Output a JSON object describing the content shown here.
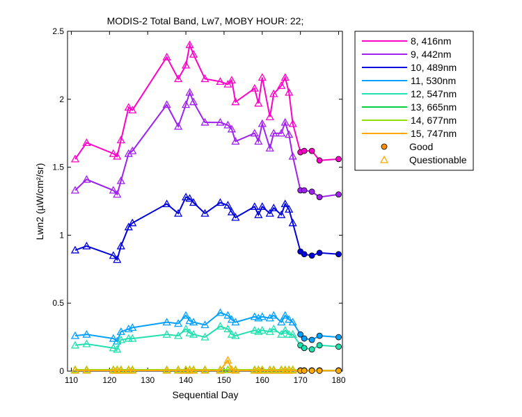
{
  "chart_data": {
    "type": "line",
    "title": "MODIS-2 Total Band, Lw7, MOBY HOUR: 22;",
    "xlabel": "Sequential Day",
    "ylabel": "Lwn2 (µW/cm²/sr)",
    "xlim": [
      109,
      181
    ],
    "ylim": [
      0,
      2.5
    ],
    "xticks": [
      110,
      120,
      130,
      140,
      150,
      160,
      170,
      180
    ],
    "yticks": [
      0,
      0.5,
      1,
      1.5,
      2,
      2.5
    ],
    "xtick_labels": [
      "110",
      "120",
      "130",
      "140",
      "150",
      "160",
      "170",
      "180"
    ],
    "ytick_labels": [
      "0",
      "0.5",
      "1",
      "1.5",
      "2",
      "2.5"
    ],
    "grid": false,
    "legend_position": "outside-right",
    "x": [
      111,
      114,
      121,
      122,
      123,
      125,
      126,
      135,
      138,
      140,
      141,
      142,
      145,
      149,
      151,
      152,
      153,
      158,
      159,
      160,
      162,
      163,
      165,
      166,
      167,
      168,
      170,
      171,
      173,
      175,
      180
    ],
    "good_from_index": 26,
    "series": [
      {
        "name": "8, 416nm",
        "color": "#ff00c8",
        "values": [
          1.56,
          1.68,
          1.6,
          1.58,
          1.7,
          1.94,
          1.92,
          2.31,
          2.15,
          2.25,
          2.4,
          2.33,
          2.15,
          2.13,
          2.11,
          2.14,
          1.98,
          2.08,
          1.97,
          2.16,
          1.87,
          2.04,
          2.1,
          2.16,
          2.05,
          1.82,
          1.61,
          1.62,
          1.62,
          1.55,
          1.56
        ]
      },
      {
        "name": "9, 442nm",
        "color": "#a020f0",
        "values": [
          1.33,
          1.41,
          1.33,
          1.3,
          1.4,
          1.6,
          1.62,
          1.96,
          1.8,
          1.96,
          2.05,
          1.98,
          1.83,
          1.83,
          1.81,
          1.78,
          1.69,
          1.75,
          1.69,
          1.82,
          1.64,
          1.75,
          1.75,
          1.83,
          1.74,
          1.58,
          1.33,
          1.33,
          1.32,
          1.28,
          1.3
        ]
      },
      {
        "name": "10, 489nm",
        "color": "#0000dc",
        "values": [
          0.89,
          0.92,
          0.85,
          0.82,
          0.92,
          1.06,
          1.09,
          1.23,
          1.16,
          1.28,
          1.27,
          1.24,
          1.16,
          1.24,
          1.22,
          1.17,
          1.13,
          1.21,
          1.15,
          1.21,
          1.16,
          1.2,
          1.15,
          1.23,
          1.19,
          1.09,
          0.88,
          0.86,
          0.85,
          0.87,
          0.86
        ]
      },
      {
        "name": "11, 530nm",
        "color": "#00a0ff",
        "values": [
          0.26,
          0.27,
          0.24,
          0.22,
          0.29,
          0.31,
          0.32,
          0.36,
          0.35,
          0.41,
          0.37,
          0.36,
          0.34,
          0.43,
          0.41,
          0.38,
          0.36,
          0.4,
          0.39,
          0.4,
          0.39,
          0.41,
          0.36,
          0.41,
          0.38,
          0.36,
          0.27,
          0.24,
          0.23,
          0.26,
          0.25
        ]
      },
      {
        "name": "12, 547nm",
        "color": "#20e0b0",
        "values": [
          0.19,
          0.2,
          0.17,
          0.16,
          0.23,
          0.24,
          0.24,
          0.27,
          0.26,
          0.31,
          0.28,
          0.27,
          0.25,
          0.33,
          0.31,
          0.27,
          0.26,
          0.3,
          0.29,
          0.3,
          0.29,
          0.31,
          0.27,
          0.3,
          0.27,
          0.27,
          0.19,
          0.17,
          0.16,
          0.19,
          0.18
        ]
      },
      {
        "name": "13, 665nm",
        "color": "#00d040",
        "values": [
          0.01,
          0.01,
          0.01,
          0.01,
          0.01,
          0.01,
          0.01,
          0.01,
          0.01,
          0.01,
          0.01,
          0.01,
          0.01,
          0.01,
          0.01,
          0.01,
          0.01,
          0.01,
          0.01,
          0.01,
          0.01,
          0.01,
          0.01,
          0.01,
          0.01,
          0.01,
          0.005,
          0.005,
          0.005,
          0.005,
          0.005
        ]
      },
      {
        "name": "14, 677nm",
        "color": "#90e000",
        "values": [
          0.01,
          0.01,
          0.01,
          0.01,
          0.01,
          0.01,
          0.01,
          0.01,
          0.01,
          0.01,
          0.01,
          0.01,
          0.01,
          0.01,
          0.01,
          0.01,
          0.01,
          0.01,
          0.01,
          0.01,
          0.01,
          0.01,
          0.01,
          0.01,
          0.01,
          0.01,
          0.005,
          0.005,
          0.005,
          0.005,
          0.005
        ]
      },
      {
        "name": "15, 747nm",
        "color": "#ffaa00",
        "values": [
          0.005,
          0.005,
          0.005,
          0.005,
          0.005,
          0.005,
          0.005,
          0.005,
          0.005,
          0.005,
          0.005,
          0.005,
          0.005,
          0.005,
          0.08,
          0.01,
          0.005,
          0.005,
          0.005,
          0.005,
          0.005,
          0.005,
          0.005,
          0.005,
          0.005,
          0.005,
          0.003,
          0.003,
          0.003,
          0.003,
          0.003
        ]
      }
    ],
    "marker_legend": [
      {
        "name": "Good",
        "marker": "circle",
        "color": "#ff8c00"
      },
      {
        "name": "Questionable",
        "marker": "triangle",
        "color": "#ffaa00"
      }
    ]
  }
}
